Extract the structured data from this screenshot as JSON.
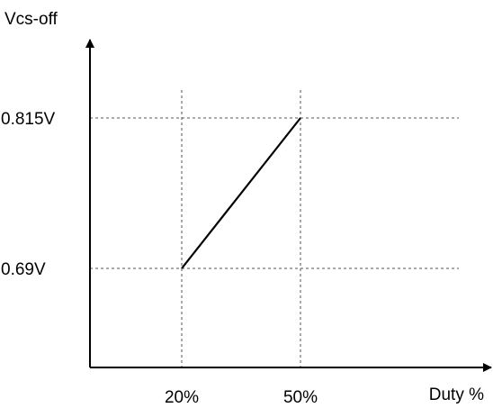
{
  "chart_data": {
    "type": "line",
    "ylabel": "Vcs-off",
    "xlabel": "Duty %",
    "x_ticks": [
      {
        "value": 20,
        "label": "20%"
      },
      {
        "value": 50,
        "label": "50%"
      }
    ],
    "y_ticks": [
      {
        "value": 0.69,
        "label": "0.69V"
      },
      {
        "value": 0.815,
        "label": "0.815V"
      }
    ],
    "series": [
      {
        "x": [
          20,
          50
        ],
        "y": [
          0.69,
          0.815
        ]
      }
    ],
    "grid": "dashed reference lines at tick values",
    "colors": {
      "axis": "#000000",
      "line": "#000000",
      "grid": "#555555"
    }
  }
}
